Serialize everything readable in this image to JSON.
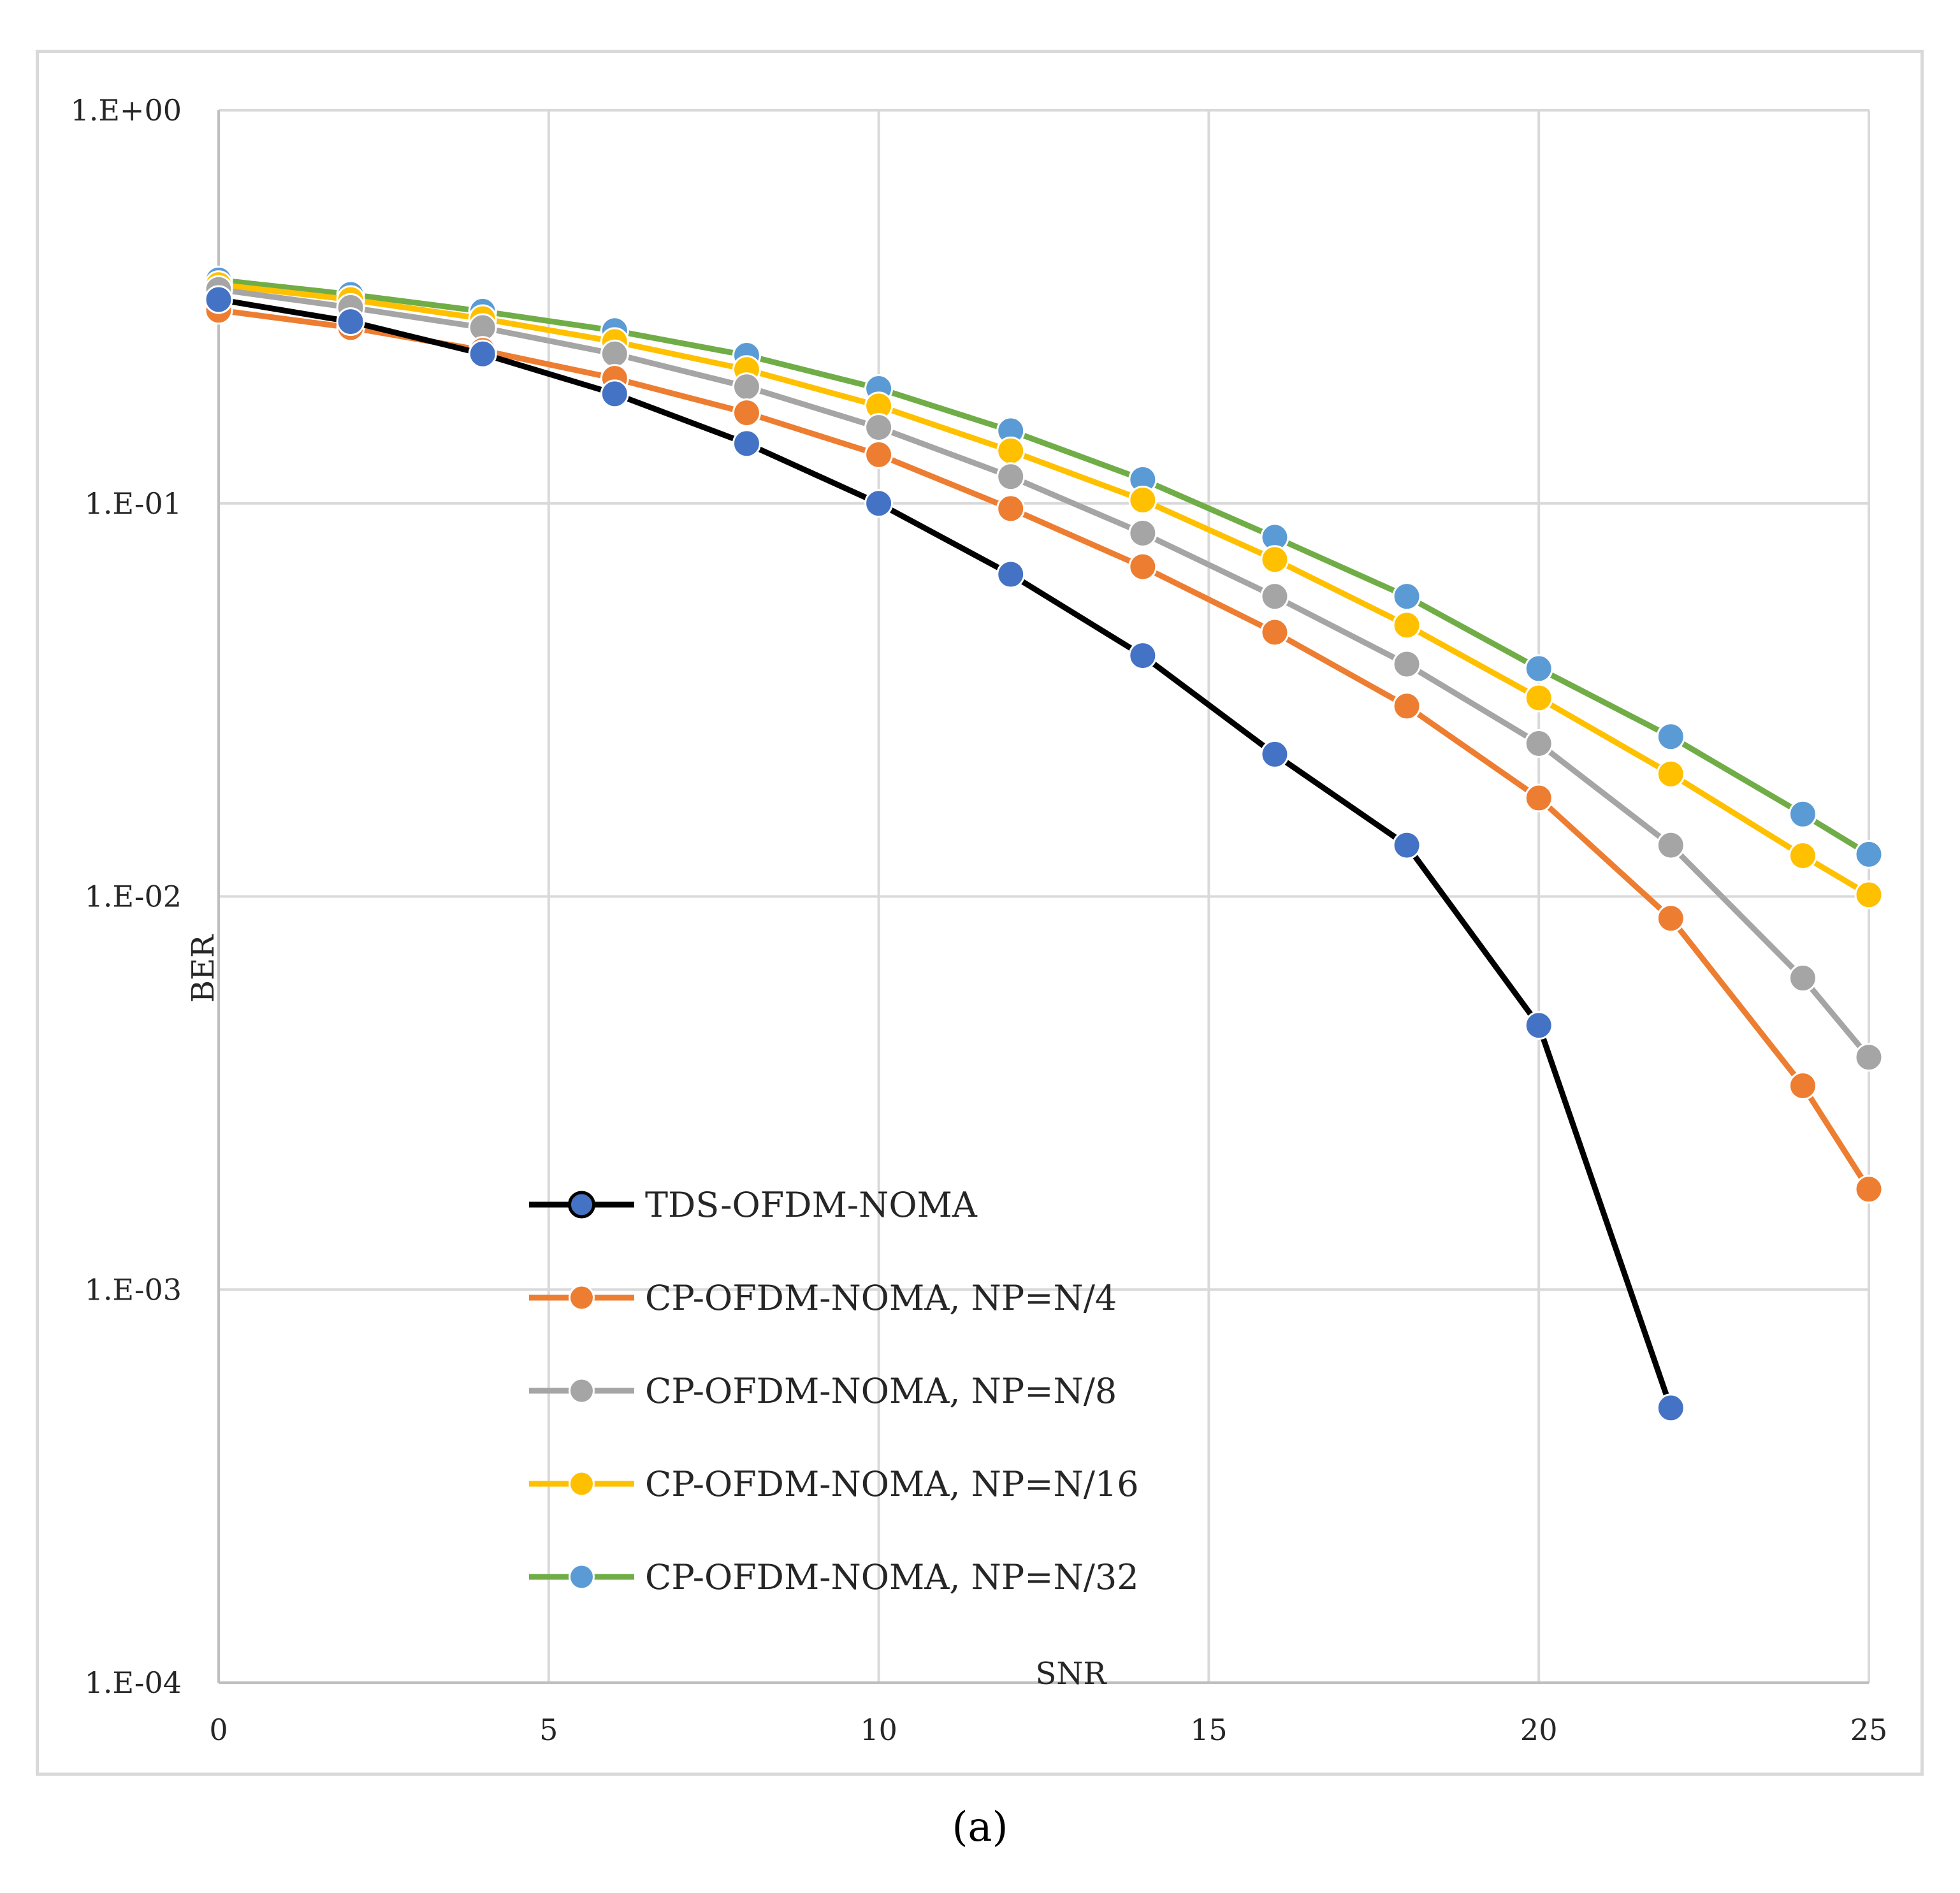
{
  "chart_data": {
    "type": "line",
    "title": "",
    "xlabel": "SNR",
    "ylabel": "BER",
    "yscale": "log",
    "xlim": [
      0,
      25
    ],
    "ylim": [
      0.0001,
      1
    ],
    "x_ticks": [
      0,
      5,
      10,
      15,
      20,
      25
    ],
    "x_tick_labels": [
      "0",
      "5",
      "10",
      "15",
      "20",
      "25"
    ],
    "y_ticks": [
      1,
      0.1,
      0.01,
      0.001,
      0.0001
    ],
    "y_tick_labels": [
      "1.E+00",
      "1.E-01",
      "1.E-02",
      "1.E-03",
      "1.E-04"
    ],
    "grid": true,
    "legend_position": "lower-left",
    "series": [
      {
        "name": "TDS-OFDM-NOMA",
        "line_color": "#000000",
        "marker_color": "#4472c4",
        "x": [
          0,
          2,
          4,
          6,
          8,
          10,
          12,
          14,
          16,
          18,
          20,
          22
        ],
        "y": [
          0.33,
          0.29,
          0.24,
          0.19,
          0.142,
          0.1,
          0.066,
          0.041,
          0.023,
          0.0135,
          0.0047,
          0.0005
        ]
      },
      {
        "name": "CP-OFDM-NOMA, NP=N/4",
        "line_color": "#ed7d31",
        "marker_color": "#ed7d31",
        "x": [
          0,
          2,
          4,
          6,
          8,
          10,
          12,
          14,
          16,
          18,
          20,
          22,
          24,
          25
        ],
        "y": [
          0.31,
          0.28,
          0.245,
          0.208,
          0.17,
          0.133,
          0.097,
          0.069,
          0.047,
          0.0305,
          0.0178,
          0.0088,
          0.0033,
          0.0018
        ]
      },
      {
        "name": "CP-OFDM-NOMA, NP=N/8",
        "line_color": "#a5a5a5",
        "marker_color": "#a5a5a5",
        "x": [
          0,
          2,
          4,
          6,
          8,
          10,
          12,
          14,
          16,
          18,
          20,
          22,
          24,
          25
        ],
        "y": [
          0.35,
          0.315,
          0.28,
          0.24,
          0.198,
          0.156,
          0.117,
          0.084,
          0.058,
          0.039,
          0.0245,
          0.0135,
          0.0062,
          0.0039
        ]
      },
      {
        "name": "CP-OFDM-NOMA, NP=N/16",
        "line_color": "#ffc000",
        "marker_color": "#ffc000",
        "x": [
          0,
          2,
          4,
          6,
          8,
          10,
          12,
          14,
          16,
          18,
          20,
          22,
          24,
          25
        ],
        "y": [
          0.36,
          0.33,
          0.295,
          0.258,
          0.219,
          0.177,
          0.136,
          0.102,
          0.072,
          0.049,
          0.032,
          0.0205,
          0.0127,
          0.0101
        ]
      },
      {
        "name": "CP-OFDM-NOMA, NP=N/32",
        "line_color": "#70ad47",
        "marker_color": "#5b9bd5",
        "x": [
          0,
          2,
          4,
          6,
          8,
          10,
          12,
          14,
          16,
          18,
          20,
          22,
          24,
          25
        ],
        "y": [
          0.37,
          0.34,
          0.308,
          0.275,
          0.238,
          0.196,
          0.153,
          0.115,
          0.082,
          0.058,
          0.038,
          0.0255,
          0.0162,
          0.0128
        ]
      }
    ]
  },
  "caption": "(a)"
}
